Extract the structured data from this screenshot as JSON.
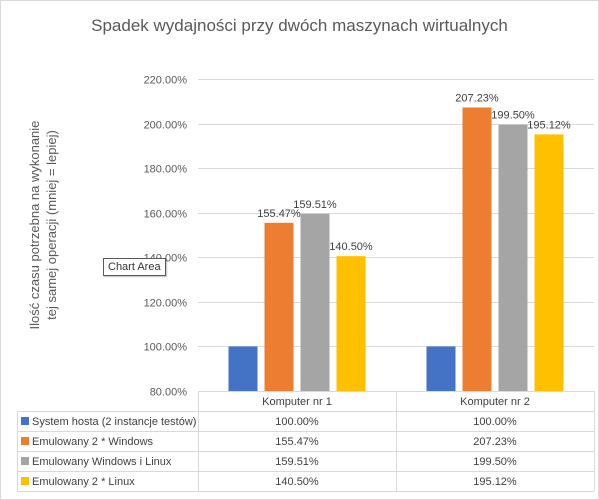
{
  "chart_data": {
    "type": "bar",
    "title": "Spadek wydajności przy dwóch maszynach wirtualnych",
    "ylabel": "Ilość czasu potrzebna na wykonanie tej samej operacji (mniej = lepiej)",
    "xlabel": "",
    "categories": [
      "Komputer nr 1",
      "Komputer nr 2"
    ],
    "ylim": [
      80,
      220
    ],
    "yticks": [
      80,
      100,
      120,
      140,
      160,
      180,
      200,
      220
    ],
    "ytick_labels": [
      "80.00%",
      "100.00%",
      "120.00%",
      "140.00%",
      "160.00%",
      "180.00%",
      "200.00%",
      "220.00%"
    ],
    "grid": true,
    "legend": "data-table",
    "series": [
      {
        "name": "System hosta (2 instancje testów)",
        "color": "#4472c4",
        "values": [
          100.0,
          100.0
        ],
        "labels": [
          "100.00%",
          "100.00%"
        ],
        "show_data_labels": false
      },
      {
        "name": "Emulowany 2 * Windows",
        "color": "#ed7d31",
        "values": [
          155.47,
          207.23
        ],
        "labels": [
          "155.47%",
          "207.23%"
        ],
        "show_data_labels": true
      },
      {
        "name": "Emulowany Windows i Linux",
        "color": "#a5a5a5",
        "values": [
          159.51,
          199.5
        ],
        "labels": [
          "159.51%",
          "199.50%"
        ],
        "show_data_labels": true
      },
      {
        "name": "Emulowany 2 * Linux",
        "color": "#ffc000",
        "values": [
          140.5,
          195.12
        ],
        "labels": [
          "140.50%",
          "195.12%"
        ],
        "show_data_labels": true
      }
    ]
  },
  "tooltip": {
    "text": "Chart Area"
  },
  "colors": {
    "grid": "#d9d9d9",
    "text": "#595959"
  }
}
